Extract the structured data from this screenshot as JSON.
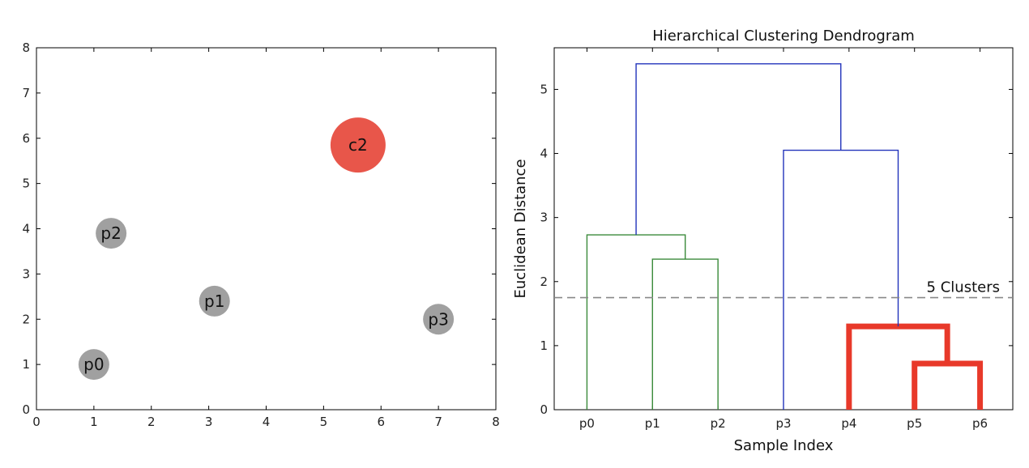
{
  "chart_data": [
    {
      "type": "scatter",
      "title": "",
      "xlabel": "",
      "ylabel": "",
      "xlim": [
        0,
        8
      ],
      "ylim": [
        0,
        8
      ],
      "xticks": [
        "0",
        "1",
        "2",
        "3",
        "4",
        "5",
        "6",
        "7",
        "8"
      ],
      "yticks": [
        "0",
        "1",
        "2",
        "3",
        "4",
        "5",
        "6",
        "7",
        "8"
      ],
      "grid": false,
      "points": [
        {
          "label": "p0",
          "x": 1.0,
          "y": 1.0,
          "color": "#a0a0a0",
          "size": "small"
        },
        {
          "label": "p1",
          "x": 3.1,
          "y": 2.4,
          "color": "#a0a0a0",
          "size": "small"
        },
        {
          "label": "p2",
          "x": 1.3,
          "y": 3.9,
          "color": "#a0a0a0",
          "size": "small"
        },
        {
          "label": "p3",
          "x": 7.0,
          "y": 2.0,
          "color": "#a0a0a0",
          "size": "small"
        },
        {
          "label": "c2",
          "x": 5.6,
          "y": 5.85,
          "color": "#e8564a",
          "size": "large"
        }
      ]
    },
    {
      "type": "dendrogram",
      "title": "Hierarchical Clustering Dendrogram",
      "xlabel": "Sample Index",
      "ylabel": "Euclidean Distance",
      "ylim": [
        0,
        5.65
      ],
      "yticks": [
        "0",
        "1",
        "2",
        "3",
        "4",
        "5"
      ],
      "leaves": [
        "p0",
        "p1",
        "p2",
        "p3",
        "p4",
        "p5",
        "p6"
      ],
      "grid": false,
      "cut_line": {
        "y": 1.75,
        "label": "5 Clusters",
        "color": "#888888",
        "style": "dashed"
      },
      "links": [
        {
          "left": "p5",
          "right": "p6",
          "height": 0.72,
          "color": "#e8392a",
          "bold": true
        },
        {
          "left": "p4",
          "right": "p5+p6",
          "height": 1.3,
          "color": "#e8392a",
          "bold": true
        },
        {
          "left": "p1",
          "right": "p2",
          "height": 2.35,
          "color": "#3a8a3a",
          "bold": false
        },
        {
          "left": "p0",
          "right": "p1+p2",
          "height": 2.73,
          "color": "#3a8a3a",
          "bold": false
        },
        {
          "left": "p3",
          "right": "p4+p5+p6",
          "height": 4.05,
          "color": "#2233bb",
          "bold": false
        },
        {
          "left": "p0+p1+p2",
          "right": "p3+p4+p5+p6",
          "height": 5.4,
          "color": "#2233bb",
          "bold": false
        }
      ]
    }
  ]
}
